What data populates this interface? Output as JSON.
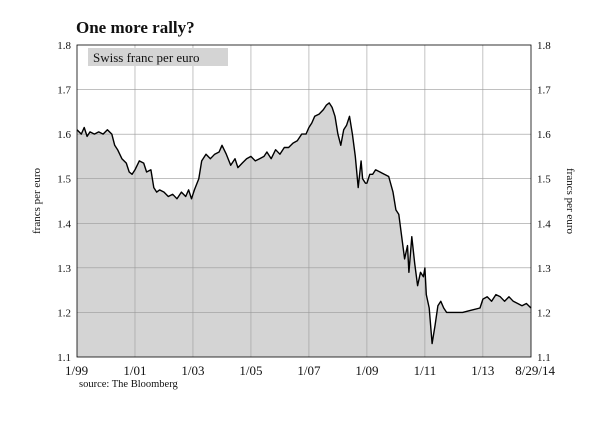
{
  "title": "One more rally?",
  "subtitle": "Swiss franc per euro",
  "source": "source: The Bloomberg",
  "colors": {
    "fill": "#d4d4d4",
    "line": "#000000",
    "grid": "#9a9a9a",
    "text": "#111111"
  },
  "chart_data": {
    "type": "area",
    "title": "One more rally?",
    "subtitle": "Swiss franc per euro",
    "ylabel": "francs per euro",
    "ylabel_right": "francs per euro",
    "ylim": [
      1.1,
      1.8
    ],
    "yticks": [
      1.1,
      1.2,
      1.3,
      1.4,
      1.5,
      1.6,
      1.7,
      1.8
    ],
    "ytick_labels": [
      "1.1",
      "1.2",
      "1.3",
      "1.4",
      "1.5",
      "1.6",
      "1.7",
      "1.8"
    ],
    "xlim": [
      1999.0,
      2014.66
    ],
    "xticks": [
      1999,
      2001,
      2003,
      2005,
      2007,
      2009,
      2011,
      2013,
      2014.66
    ],
    "xtick_labels": [
      "1/99",
      "1/01",
      "1/03",
      "1/05",
      "1/07",
      "1/09",
      "1/11",
      "1/13",
      "8/29/14"
    ],
    "grid": true,
    "series": [
      {
        "x": [
          1999.0,
          1999.15,
          1999.25,
          1999.35,
          1999.45,
          1999.6,
          1999.75,
          1999.9,
          2000.05,
          2000.2,
          2000.3,
          2000.4,
          2000.55,
          2000.7,
          2000.8,
          2000.9,
          2001.0,
          2001.15,
          2001.3,
          2001.4,
          2001.55,
          2001.65,
          2001.75,
          2001.85,
          2002.0,
          2002.15,
          2002.3,
          2002.45,
          2002.6,
          2002.75,
          2002.85,
          2002.95,
          2003.05,
          2003.2,
          2003.3,
          2003.45,
          2003.6,
          2003.75,
          2003.9,
          2004.0,
          2004.15,
          2004.3,
          2004.45,
          2004.55,
          2004.7,
          2004.85,
          2005.0,
          2005.15,
          2005.3,
          2005.45,
          2005.55,
          2005.7,
          2005.85,
          2006.0,
          2006.15,
          2006.3,
          2006.45,
          2006.6,
          2006.75,
          2006.9,
          2007.0,
          2007.1,
          2007.2,
          2007.35,
          2007.5,
          2007.6,
          2007.7,
          2007.8,
          2007.9,
          2008.0,
          2008.1,
          2008.2,
          2008.3,
          2008.4,
          2008.5,
          2008.6,
          2008.7,
          2008.8,
          2008.85,
          2008.95,
          2009.0,
          2009.1,
          2009.2,
          2009.3,
          2009.45,
          2009.6,
          2009.75,
          2009.9,
          2010.0,
          2010.1,
          2010.2,
          2010.3,
          2010.4,
          2010.45,
          2010.5,
          2010.55,
          2010.65,
          2010.75,
          2010.85,
          2010.95,
          2011.0,
          2011.05,
          2011.15,
          2011.25,
          2011.35,
          2011.45,
          2011.55,
          2011.65,
          2011.75,
          2011.9,
          2012.0,
          2012.3,
          2012.6,
          2012.9,
          2013.0,
          2013.15,
          2013.3,
          2013.45,
          2013.6,
          2013.75,
          2013.9,
          2014.05,
          2014.2,
          2014.35,
          2014.5,
          2014.66
        ],
        "y": [
          1.61,
          1.6,
          1.615,
          1.595,
          1.605,
          1.6,
          1.605,
          1.6,
          1.61,
          1.6,
          1.575,
          1.565,
          1.545,
          1.535,
          1.515,
          1.51,
          1.52,
          1.54,
          1.535,
          1.515,
          1.52,
          1.48,
          1.47,
          1.475,
          1.47,
          1.46,
          1.465,
          1.455,
          1.47,
          1.46,
          1.475,
          1.455,
          1.475,
          1.5,
          1.54,
          1.555,
          1.545,
          1.555,
          1.56,
          1.575,
          1.555,
          1.53,
          1.545,
          1.525,
          1.535,
          1.545,
          1.55,
          1.54,
          1.545,
          1.55,
          1.56,
          1.545,
          1.565,
          1.555,
          1.57,
          1.57,
          1.58,
          1.585,
          1.6,
          1.6,
          1.615,
          1.625,
          1.64,
          1.645,
          1.655,
          1.665,
          1.67,
          1.66,
          1.64,
          1.6,
          1.575,
          1.61,
          1.62,
          1.64,
          1.6,
          1.55,
          1.48,
          1.54,
          1.5,
          1.49,
          1.49,
          1.51,
          1.51,
          1.52,
          1.515,
          1.51,
          1.505,
          1.47,
          1.43,
          1.42,
          1.37,
          1.32,
          1.35,
          1.29,
          1.33,
          1.37,
          1.31,
          1.26,
          1.29,
          1.28,
          1.3,
          1.24,
          1.21,
          1.13,
          1.17,
          1.215,
          1.225,
          1.21,
          1.2,
          1.2,
          1.2,
          1.2,
          1.205,
          1.21,
          1.23,
          1.235,
          1.225,
          1.24,
          1.235,
          1.225,
          1.235,
          1.225,
          1.22,
          1.215,
          1.22,
          1.21
        ]
      }
    ]
  }
}
